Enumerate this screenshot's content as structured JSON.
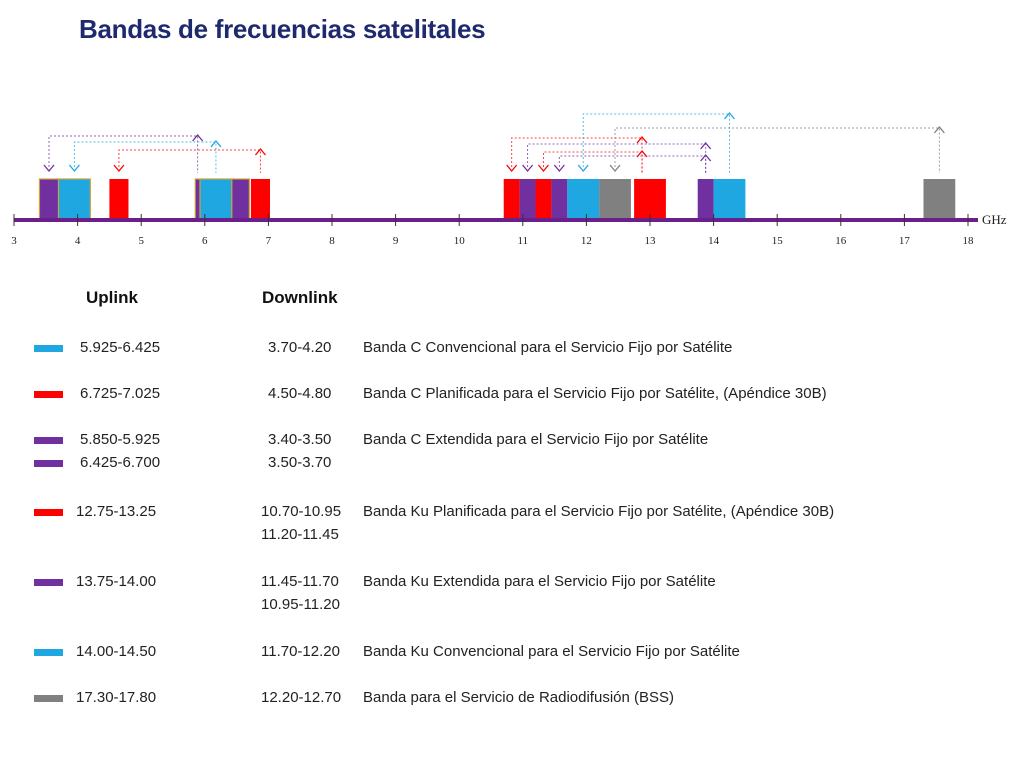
{
  "title": "Bandas de frecuencias satelitales",
  "colors": {
    "blue": "#1ea7e1",
    "red": "#ff0000",
    "purple": "#7030a0",
    "gray": "#808080",
    "axis": "#6a1f8a",
    "box_outline": "#c9a23a"
  },
  "axis": {
    "unit_label": "GHz",
    "min": 3,
    "max": 18,
    "ticks": [
      "3",
      "4",
      "5",
      "6",
      "7",
      "8",
      "9",
      "10",
      "11",
      "12",
      "13",
      "14",
      "15",
      "16",
      "17",
      "18"
    ]
  },
  "bands": [
    {
      "from": 3.4,
      "to": 3.7,
      "color": "purple"
    },
    {
      "from": 3.7,
      "to": 4.2,
      "color": "blue"
    },
    {
      "from": 4.5,
      "to": 4.8,
      "color": "red"
    },
    {
      "from": 5.85,
      "to": 5.925,
      "color": "purple"
    },
    {
      "from": 5.925,
      "to": 6.425,
      "color": "blue"
    },
    {
      "from": 6.425,
      "to": 6.7,
      "color": "purple"
    },
    {
      "from": 6.725,
      "to": 7.025,
      "color": "red"
    },
    {
      "from": 10.7,
      "to": 10.95,
      "color": "red"
    },
    {
      "from": 10.95,
      "to": 11.2,
      "color": "purple"
    },
    {
      "from": 11.2,
      "to": 11.45,
      "color": "red"
    },
    {
      "from": 11.45,
      "to": 11.7,
      "color": "purple"
    },
    {
      "from": 11.7,
      "to": 12.2,
      "color": "blue"
    },
    {
      "from": 12.2,
      "to": 12.7,
      "color": "gray"
    },
    {
      "from": 12.75,
      "to": 13.25,
      "color": "red"
    },
    {
      "from": 13.75,
      "to": 14.0,
      "color": "purple"
    },
    {
      "from": 14.0,
      "to": 14.5,
      "color": "blue"
    },
    {
      "from": 17.3,
      "to": 17.8,
      "color": "gray"
    }
  ],
  "links": [
    {
      "down": 3.55,
      "up": 5.887,
      "color": "purple"
    },
    {
      "down": 3.95,
      "up": 6.175,
      "color": "blue"
    },
    {
      "down": 4.65,
      "up": 6.875,
      "color": "red"
    },
    {
      "down": 10.825,
      "up": 12.875,
      "color": "red"
    },
    {
      "down": 11.075,
      "up": 13.875,
      "color": "purple"
    },
    {
      "down": 11.325,
      "up": 12.875,
      "color": "red"
    },
    {
      "down": 11.575,
      "up": 13.875,
      "color": "purple"
    },
    {
      "down": 11.95,
      "up": 14.25,
      "color": "blue"
    },
    {
      "down": 12.45,
      "up": 17.55,
      "color": "gray"
    }
  ],
  "legend": {
    "uplink_header": "Uplink",
    "downlink_header": "Downlink",
    "rows": [
      {
        "color": "blue",
        "uplink": [
          "5.925-6.425"
        ],
        "downlink": [
          "3.70-4.20"
        ],
        "description": "Banda C Convencional para el Servicio Fijo por Satélite"
      },
      {
        "color": "red",
        "uplink": [
          "6.725-7.025"
        ],
        "downlink": [
          "4.50-4.80"
        ],
        "description": "Banda  C Planificada para el Servicio Fijo por Satélite, (Apéndice 30B)"
      },
      {
        "color": "purple",
        "uplink": [
          "5.850-5.925",
          "6.425-6.700"
        ],
        "downlink": [
          "3.40-3.50",
          "3.50-3.70"
        ],
        "description": "Banda C Extendida para el Servicio Fijo por Satélite"
      },
      {
        "color": "red",
        "uplink": [
          "12.75-13.25"
        ],
        "downlink": [
          "10.70-10.95",
          "11.20-11.45"
        ],
        "description": "Banda Ku Planificada para el Servicio Fijo por Satélite, (Apéndice 30B)"
      },
      {
        "color": "purple",
        "uplink": [
          "13.75-14.00"
        ],
        "downlink": [
          "11.45-11.70",
          "10.95-11.20"
        ],
        "description": "Banda Ku Extendida para el Servicio Fijo por Satélite"
      },
      {
        "color": "blue",
        "uplink": [
          "14.00-14.50"
        ],
        "downlink": [
          "11.70-12.20"
        ],
        "description": "Banda Ku  Convencional para el Servicio Fijo por Satélite"
      },
      {
        "color": "gray",
        "uplink": [
          "17.30-17.80"
        ],
        "downlink": [
          "12.20-12.70"
        ],
        "description": "Banda para el Servicio de Radiodifusión (BSS)"
      }
    ]
  }
}
